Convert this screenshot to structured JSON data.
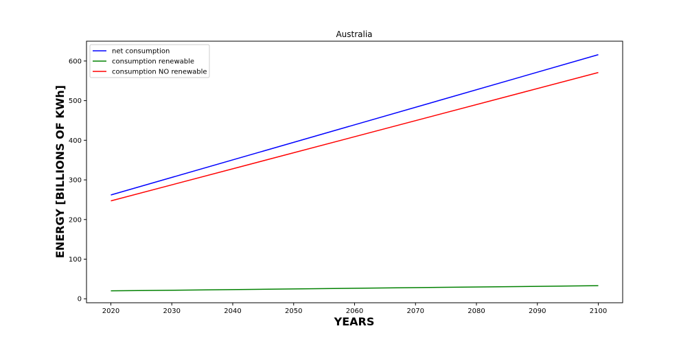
{
  "chart_data": {
    "type": "line",
    "title": "Australia",
    "xlabel": "YEARS",
    "ylabel": "ENERGY [BILLIONS OF KWh]",
    "xlim": [
      2016,
      2104
    ],
    "ylim": [
      -10,
      650
    ],
    "xticks": [
      2020,
      2030,
      2040,
      2050,
      2060,
      2070,
      2080,
      2090,
      2100
    ],
    "yticks": [
      0,
      100,
      200,
      300,
      400,
      500,
      600
    ],
    "grid": false,
    "legend_position": "upper-left",
    "x": [
      2020,
      2100
    ],
    "series": [
      {
        "name": "net consumption",
        "color": "#0000ff",
        "values": [
          262,
          616
        ]
      },
      {
        "name": "consumption renewable",
        "color": "#008000",
        "values": [
          20,
          33
        ]
      },
      {
        "name": "consumption NO renewable",
        "color": "#ff0000",
        "values": [
          247,
          571
        ]
      }
    ]
  }
}
